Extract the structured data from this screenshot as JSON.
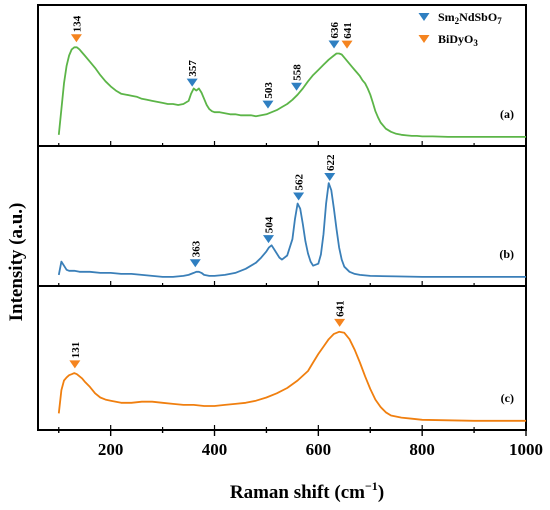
{
  "chart_data": {
    "type": "line",
    "xlabel": "Raman shift (cm",
    "xlabel_sup": "−1",
    "xlabel_end": ")",
    "ylabel": "Intensity (a.u.)",
    "xlim": [
      60,
      1000
    ],
    "xticks": [
      200,
      400,
      600,
      800,
      1000
    ],
    "legend": {
      "placement": "top-right",
      "entries": [
        {
          "label": "Sm",
          "sub1": "2",
          "mid": "NdSbO",
          "sub2": "7",
          "color": "#2f7fc1",
          "marker": "down-triangle"
        },
        {
          "label": "BiDyO",
          "sub1": "3",
          "mid": "",
          "sub2": "",
          "color": "#f5841f",
          "marker": "down-triangle"
        }
      ]
    },
    "panels": [
      {
        "label": "(a)",
        "color": "#5cb548",
        "series": {
          "x": [
            100,
            105,
            110,
            115,
            120,
            125,
            130,
            135,
            140,
            145,
            150,
            160,
            170,
            180,
            190,
            200,
            210,
            220,
            230,
            240,
            250,
            260,
            270,
            280,
            290,
            300,
            310,
            320,
            330,
            340,
            350,
            355,
            360,
            365,
            370,
            375,
            380,
            385,
            390,
            395,
            400,
            410,
            420,
            430,
            440,
            450,
            460,
            470,
            480,
            490,
            500,
            510,
            520,
            530,
            540,
            550,
            560,
            570,
            580,
            590,
            600,
            610,
            620,
            630,
            635,
            640,
            645,
            650,
            655,
            660,
            665,
            670,
            675,
            680,
            685,
            690,
            695,
            700,
            705,
            710,
            715,
            720,
            730,
            740,
            750,
            760,
            770,
            780,
            790,
            800,
            820,
            850,
            880,
            900,
            950,
            1000
          ],
          "y": [
            0.05,
            0.3,
            0.55,
            0.72,
            0.82,
            0.88,
            0.9,
            0.9,
            0.88,
            0.85,
            0.82,
            0.76,
            0.7,
            0.63,
            0.57,
            0.52,
            0.48,
            0.45,
            0.44,
            0.43,
            0.42,
            0.4,
            0.39,
            0.38,
            0.37,
            0.36,
            0.35,
            0.35,
            0.34,
            0.35,
            0.38,
            0.45,
            0.5,
            0.48,
            0.5,
            0.46,
            0.4,
            0.34,
            0.3,
            0.28,
            0.27,
            0.27,
            0.26,
            0.25,
            0.25,
            0.24,
            0.24,
            0.24,
            0.23,
            0.24,
            0.25,
            0.27,
            0.29,
            0.32,
            0.35,
            0.39,
            0.44,
            0.5,
            0.57,
            0.63,
            0.68,
            0.73,
            0.78,
            0.82,
            0.84,
            0.84,
            0.83,
            0.8,
            0.77,
            0.74,
            0.71,
            0.68,
            0.65,
            0.62,
            0.58,
            0.55,
            0.5,
            0.44,
            0.36,
            0.28,
            0.22,
            0.17,
            0.11,
            0.08,
            0.06,
            0.05,
            0.045,
            0.04,
            0.04,
            0.035,
            0.035,
            0.03,
            0.03,
            0.03,
            0.03,
            0.03
          ]
        },
        "peaks": [
          {
            "x": 134,
            "label": "134",
            "color": "#f5841f"
          },
          {
            "x": 357,
            "label": "357",
            "color": "#2f7fc1"
          },
          {
            "x": 503,
            "label": "503",
            "color": "#2f7fc1"
          },
          {
            "x": 558,
            "label": "558",
            "color": "#2f7fc1"
          },
          {
            "x": 636,
            "label": "636",
            "color": "#2f7fc1"
          },
          {
            "x": 641,
            "label": "641",
            "color": "#f5841f"
          }
        ]
      },
      {
        "label": "(b)",
        "color": "#3a7fb8",
        "series": {
          "x": [
            100,
            105,
            110,
            115,
            120,
            130,
            140,
            160,
            180,
            200,
            220,
            240,
            260,
            280,
            300,
            320,
            340,
            350,
            360,
            365,
            370,
            375,
            380,
            390,
            400,
            420,
            440,
            460,
            480,
            490,
            500,
            505,
            510,
            515,
            520,
            525,
            530,
            540,
            550,
            555,
            560,
            565,
            570,
            575,
            580,
            585,
            590,
            600,
            605,
            610,
            615,
            620,
            625,
            630,
            635,
            640,
            645,
            650,
            660,
            670,
            680,
            700,
            750,
            800,
            850,
            900,
            950,
            1000
          ],
          "y": [
            0.05,
            0.18,
            0.14,
            0.1,
            0.09,
            0.09,
            0.08,
            0.08,
            0.07,
            0.07,
            0.06,
            0.06,
            0.05,
            0.04,
            0.03,
            0.03,
            0.04,
            0.05,
            0.07,
            0.08,
            0.08,
            0.07,
            0.05,
            0.04,
            0.04,
            0.05,
            0.07,
            0.11,
            0.17,
            0.22,
            0.28,
            0.32,
            0.34,
            0.3,
            0.26,
            0.22,
            0.2,
            0.24,
            0.4,
            0.6,
            0.75,
            0.7,
            0.55,
            0.38,
            0.26,
            0.18,
            0.14,
            0.16,
            0.25,
            0.45,
            0.75,
            0.95,
            0.88,
            0.7,
            0.5,
            0.32,
            0.2,
            0.13,
            0.08,
            0.06,
            0.05,
            0.04,
            0.035,
            0.03,
            0.03,
            0.03,
            0.03,
            0.03
          ]
        },
        "peaks": [
          {
            "x": 363,
            "label": "363",
            "color": "#2f7fc1"
          },
          {
            "x": 504,
            "label": "504",
            "color": "#2f7fc1"
          },
          {
            "x": 562,
            "label": "562",
            "color": "#2f7fc1"
          },
          {
            "x": 622,
            "label": "622",
            "color": "#2f7fc1"
          }
        ]
      },
      {
        "label": "(c)",
        "color": "#f07f0f",
        "series": {
          "x": [
            100,
            105,
            110,
            115,
            120,
            125,
            130,
            135,
            140,
            145,
            150,
            160,
            170,
            180,
            190,
            200,
            210,
            220,
            240,
            260,
            280,
            300,
            320,
            340,
            360,
            380,
            400,
            420,
            440,
            460,
            480,
            500,
            520,
            540,
            560,
            580,
            590,
            600,
            610,
            620,
            630,
            640,
            650,
            660,
            670,
            680,
            690,
            700,
            710,
            720,
            730,
            740,
            760,
            780,
            800,
            850,
            900,
            950,
            1000
          ],
          "y": [
            0.1,
            0.32,
            0.41,
            0.44,
            0.46,
            0.47,
            0.48,
            0.47,
            0.45,
            0.43,
            0.4,
            0.35,
            0.29,
            0.25,
            0.23,
            0.22,
            0.21,
            0.2,
            0.2,
            0.21,
            0.21,
            0.2,
            0.19,
            0.18,
            0.18,
            0.17,
            0.17,
            0.18,
            0.19,
            0.2,
            0.22,
            0.25,
            0.29,
            0.34,
            0.41,
            0.5,
            0.58,
            0.66,
            0.73,
            0.8,
            0.85,
            0.87,
            0.86,
            0.8,
            0.7,
            0.58,
            0.45,
            0.33,
            0.23,
            0.16,
            0.11,
            0.08,
            0.06,
            0.05,
            0.04,
            0.035,
            0.03,
            0.03,
            0.03
          ]
        },
        "peaks": [
          {
            "x": 131,
            "label": "131",
            "color": "#f5841f"
          },
          {
            "x": 641,
            "label": "641",
            "color": "#f5841f"
          }
        ]
      }
    ]
  }
}
